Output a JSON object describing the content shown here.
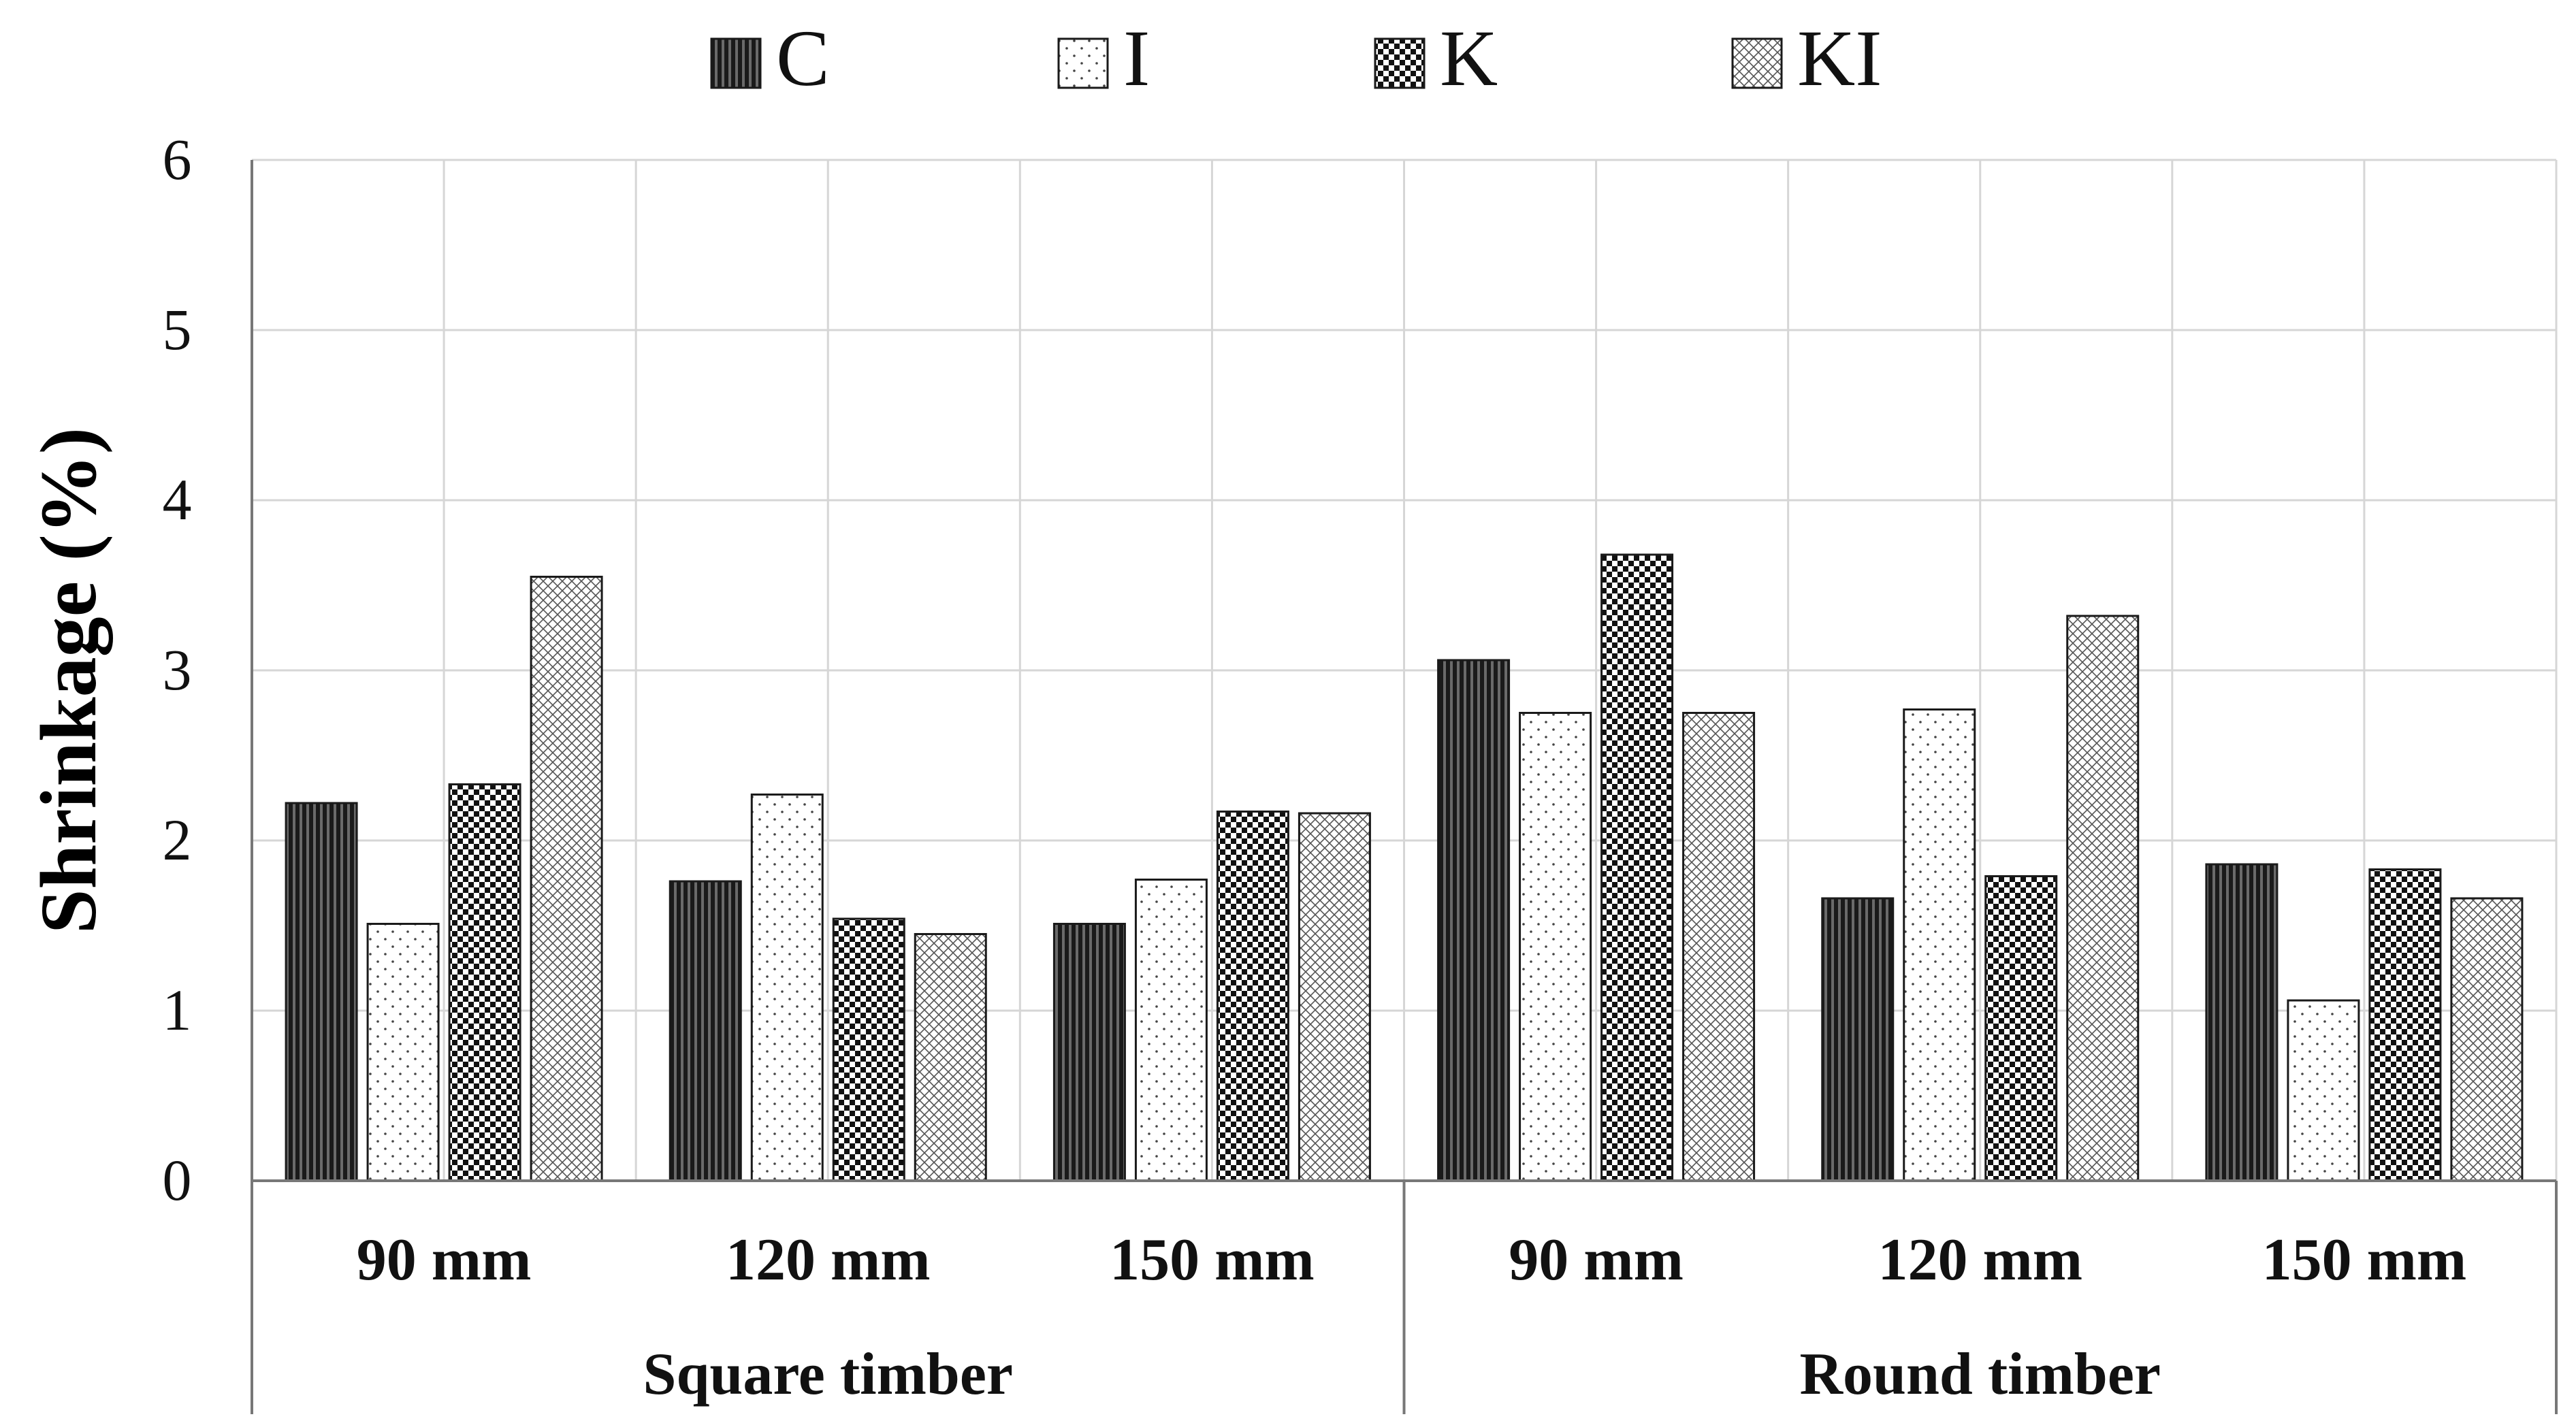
{
  "chart_data": {
    "type": "bar",
    "title": "",
    "xlabel": "",
    "ylabel": "Shrinkage (%)",
    "ylim": [
      0,
      6
    ],
    "yticks": [
      "0",
      "1",
      "2",
      "3",
      "4",
      "5",
      "6"
    ],
    "grid": true,
    "legend_position": "top-center",
    "groups": [
      {
        "label": "Square timber",
        "categories": [
          "90 mm",
          "120 mm",
          "150 mm"
        ]
      },
      {
        "label": "Round timber",
        "categories": [
          "90 mm",
          "120 mm",
          "150 mm"
        ]
      }
    ],
    "categories": [
      "90 mm",
      "120 mm",
      "150 mm",
      "90 mm",
      "120 mm",
      "150 mm"
    ],
    "series": [
      {
        "name": "C",
        "pattern": "vertical-stripes",
        "values": [
          2.22,
          1.76,
          1.51,
          3.06,
          1.66,
          1.86
        ]
      },
      {
        "name": "I",
        "pattern": "sparse-dots",
        "values": [
          1.51,
          2.27,
          1.77,
          2.75,
          2.77,
          1.06
        ]
      },
      {
        "name": "K",
        "pattern": "checkerboard",
        "values": [
          2.33,
          1.54,
          2.17,
          3.68,
          1.79,
          1.83
        ]
      },
      {
        "name": "KI",
        "pattern": "crosshatch",
        "values": [
          3.55,
          1.45,
          2.16,
          2.75,
          3.32,
          1.66
        ]
      }
    ],
    "colors": {
      "stroke": "#1a1a1a",
      "grid": "#d6d6d6",
      "dark": "#111111",
      "light": "#ffffff"
    }
  }
}
